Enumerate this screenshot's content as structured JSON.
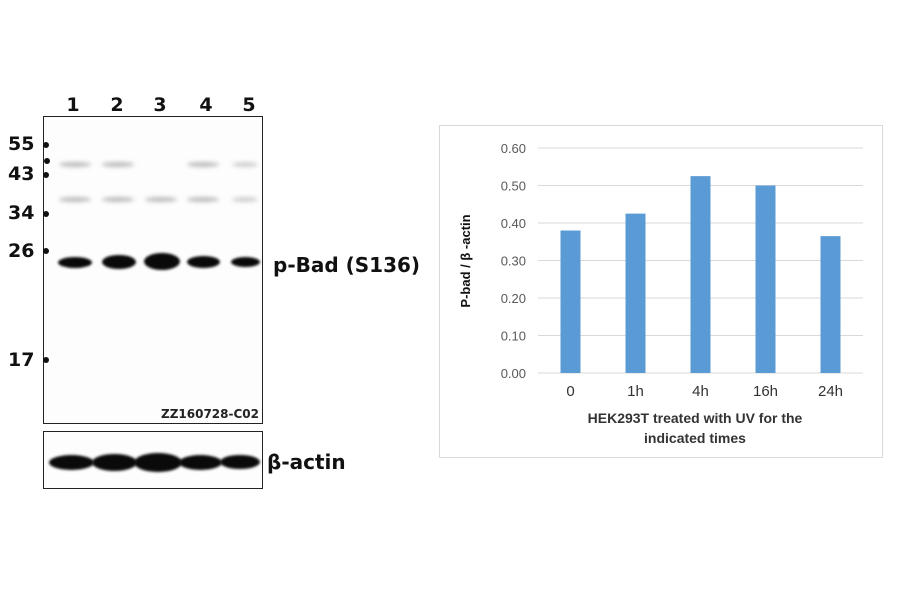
{
  "blot": {
    "lanes": [
      "1",
      "2",
      "3",
      "4",
      "5"
    ],
    "markers": [
      "55",
      "43",
      "34",
      "26",
      "17"
    ],
    "main_label": "p-Bad (S136)",
    "loading_label": "β-actin",
    "lot_code": "ZZ160728-C02"
  },
  "chart_data": {
    "type": "bar",
    "categories": [
      "0",
      "1h",
      "4h",
      "16h",
      "24h"
    ],
    "values": [
      0.38,
      0.425,
      0.525,
      0.5,
      0.365
    ],
    "title": "",
    "xlabel": "HEK293T treated with UV for the indicated times",
    "xlabel_lines": [
      "HEK293T treated with UV for the",
      "indicated times"
    ],
    "ylabel": "P-bad / β -actin",
    "ylim": [
      0,
      0.6
    ],
    "yticks": [
      "0.00",
      "0.10",
      "0.20",
      "0.30",
      "0.40",
      "0.50",
      "0.60"
    ],
    "grid": true,
    "bar_color": "#5b9bd5",
    "grid_color": "#d9d9d9"
  }
}
